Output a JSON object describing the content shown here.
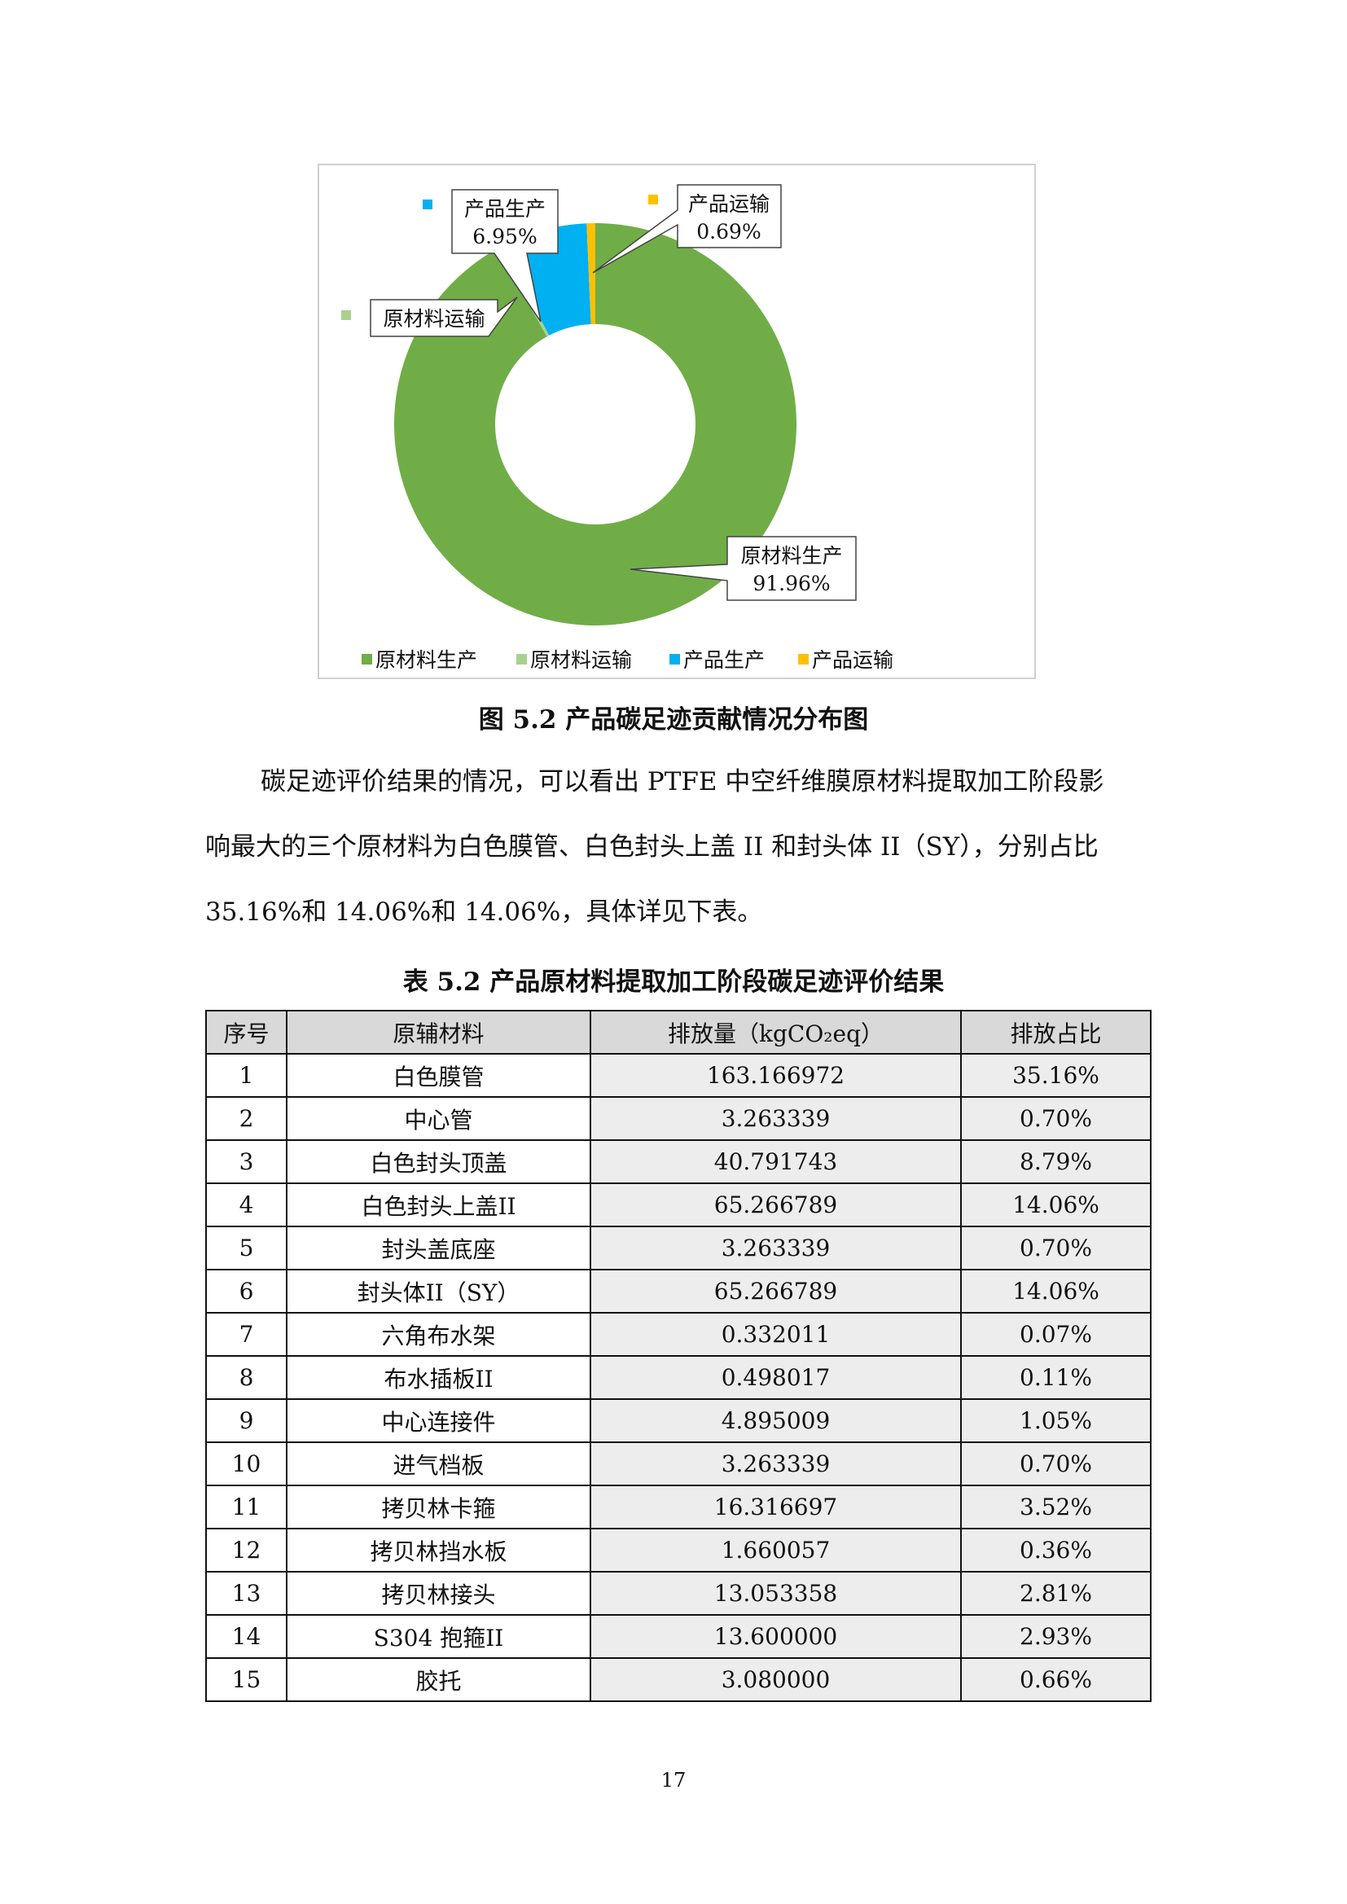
{
  "chart_data": {
    "type": "pie",
    "variant": "donut",
    "title": "",
    "categories": [
      "原材料生产",
      "原材料运输",
      "产品生产",
      "产品运输"
    ],
    "values": [
      91.96,
      0.4,
      6.95,
      0.69
    ],
    "data_labels": [
      "91.96%",
      "",
      "6.95%",
      "0.69%"
    ],
    "colors": [
      "#70ad47",
      "#a9d18e",
      "#00b0f0",
      "#ffc000"
    ],
    "legend": "bottom"
  },
  "figure_caption": "图 5.2  产品碳足迹贡献情况分布图",
  "paragraph": {
    "line1": "碳足迹评价结果的情况，可以看出 PTFE 中空纤维膜原材料提取加工阶段影",
    "line2": "响最大的三个原材料为白色膜管、白色封头上盖 II 和封头体 II（SY），分别占比",
    "line3": "35.16%和 14.06%和 14.06%，具体详见下表。"
  },
  "table_caption": "表 5.2  产品原材料提取加工阶段碳足迹评价结果",
  "table": {
    "headers": [
      "序号",
      "原辅材料",
      "排放量（kgCO₂eq）",
      "排放占比"
    ],
    "rows": [
      [
        "1",
        "白色膜管",
        "163.166972",
        "35.16%"
      ],
      [
        "2",
        "中心管",
        "3.263339",
        "0.70%"
      ],
      [
        "3",
        "白色封头顶盖",
        "40.791743",
        "8.79%"
      ],
      [
        "4",
        "白色封头上盖II",
        "65.266789",
        "14.06%"
      ],
      [
        "5",
        "封头盖底座",
        "3.263339",
        "0.70%"
      ],
      [
        "6",
        "封头体II（SY）",
        "65.266789",
        "14.06%"
      ],
      [
        "7",
        "六角布水架",
        "0.332011",
        "0.07%"
      ],
      [
        "8",
        "布水插板II",
        "0.498017",
        "0.11%"
      ],
      [
        "9",
        "中心连接件",
        "4.895009",
        "1.05%"
      ],
      [
        "10",
        "进气档板",
        "3.263339",
        "0.70%"
      ],
      [
        "11",
        "拷贝林卡箍",
        "16.316697",
        "3.52%"
      ],
      [
        "12",
        "拷贝林挡水板",
        "1.660057",
        "0.36%"
      ],
      [
        "13",
        "拷贝林接头",
        "13.053358",
        "2.81%"
      ],
      [
        "14",
        "S304 抱箍II",
        "13.600000",
        "2.93%"
      ],
      [
        "15",
        "胶托",
        "3.080000",
        "0.66%"
      ]
    ]
  },
  "page_number": "17"
}
